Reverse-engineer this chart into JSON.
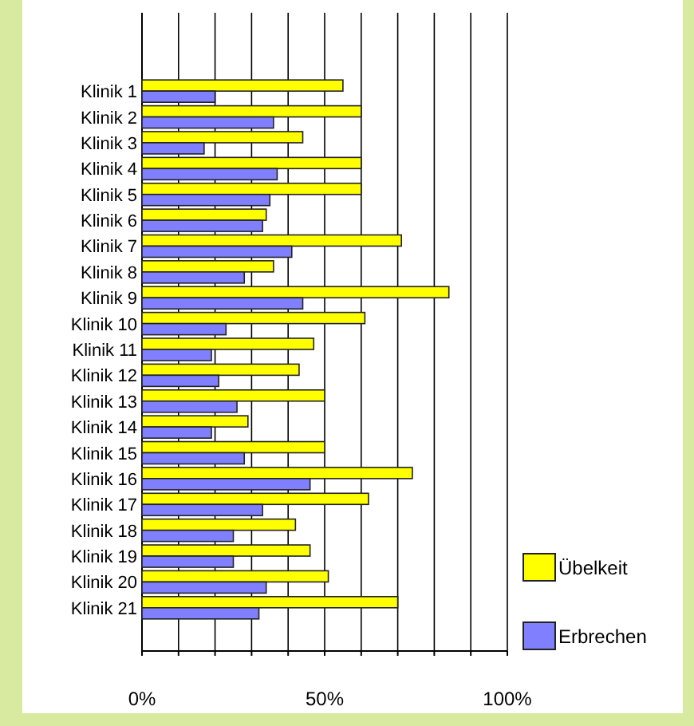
{
  "chart_data": {
    "type": "bar",
    "orientation": "horizontal",
    "categories": [
      "Klinik 1",
      "Klinik 2",
      "Klinik 3",
      "Klinik 4",
      "Klinik 5",
      "Klinik 6",
      "Klinik 7",
      "Klinik 8",
      "Klinik 9",
      "Klinik 10",
      "Klinik 11",
      "Klinik 12",
      "Klinik 13",
      "Klinik 14",
      "Klinik 15",
      "Klinik 16",
      "Klinik 17",
      "Klinik 18",
      "Klinik 19",
      "Klinik 20",
      "Klinik 21"
    ],
    "series": [
      {
        "name": "Übelkeit",
        "color": "#ffff00",
        "values": [
          55,
          60,
          44,
          60,
          60,
          34,
          71,
          36,
          84,
          61,
          47,
          43,
          50,
          29,
          50,
          74,
          62,
          42,
          46,
          51,
          70
        ]
      },
      {
        "name": "Erbrechen",
        "color": "#8080ff",
        "values": [
          20,
          36,
          17,
          37,
          35,
          33,
          41,
          28,
          44,
          23,
          19,
          21,
          26,
          19,
          28,
          46,
          33,
          25,
          25,
          34,
          32
        ]
      }
    ],
    "xlim": [
      0,
      100
    ],
    "xticks": [
      {
        "value": 0,
        "label": "0%"
      },
      {
        "value": 10,
        "label": null
      },
      {
        "value": 20,
        "label": null
      },
      {
        "value": 30,
        "label": null
      },
      {
        "value": 40,
        "label": null
      },
      {
        "value": 50,
        "label": "50%"
      },
      {
        "value": 60,
        "label": null
      },
      {
        "value": 70,
        "label": null
      },
      {
        "value": 80,
        "label": null
      },
      {
        "value": 90,
        "label": null
      },
      {
        "value": 100,
        "label": "100%"
      }
    ],
    "grid": "x",
    "legend": "bottom right"
  }
}
